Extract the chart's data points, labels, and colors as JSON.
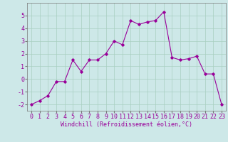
{
  "x": [
    0,
    1,
    2,
    3,
    4,
    5,
    6,
    7,
    8,
    9,
    10,
    11,
    12,
    13,
    14,
    15,
    16,
    17,
    18,
    19,
    20,
    21,
    22,
    23
  ],
  "y": [
    -2.0,
    -1.7,
    -1.3,
    -0.2,
    -0.2,
    1.5,
    0.6,
    1.5,
    1.5,
    2.0,
    3.0,
    2.7,
    4.6,
    4.3,
    4.5,
    4.6,
    5.3,
    1.7,
    1.5,
    1.6,
    1.8,
    0.4,
    0.4,
    -2.0
  ],
  "line_color": "#990099",
  "marker": "D",
  "marker_size": 1.8,
  "linewidth": 0.8,
  "xlabel": "Windchill (Refroidissement éolien,°C)",
  "ylim": [
    -2.5,
    6.0
  ],
  "xlim": [
    -0.5,
    23.5
  ],
  "yticks": [
    -2,
    -1,
    0,
    1,
    2,
    3,
    4,
    5
  ],
  "xticks": [
    0,
    1,
    2,
    3,
    4,
    5,
    6,
    7,
    8,
    9,
    10,
    11,
    12,
    13,
    14,
    15,
    16,
    17,
    18,
    19,
    20,
    21,
    22,
    23
  ],
  "background_color": "#cde8e8",
  "grid_color": "#a8cfc0",
  "tick_label_color": "#990099",
  "xlabel_color": "#990099",
  "xlabel_fontsize": 6.0,
  "tick_fontsize": 6.0
}
